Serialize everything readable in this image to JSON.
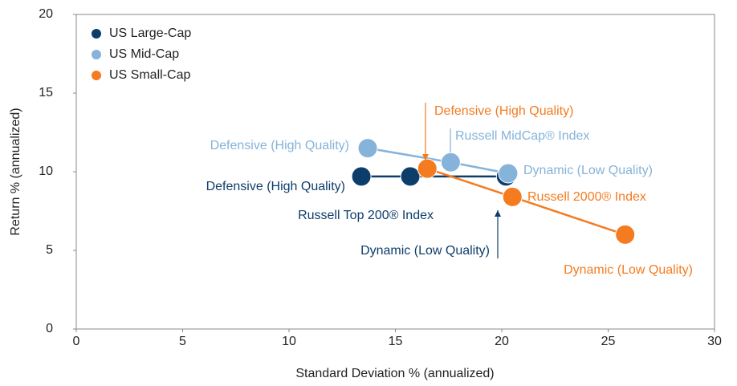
{
  "chart_data": {
    "type": "scatter",
    "xlabel": "Standard Deviation % (annualized)",
    "ylabel": "Return % (annualized)",
    "xlim": [
      0,
      30
    ],
    "xticks": [
      0,
      5,
      10,
      15,
      20,
      25,
      30
    ],
    "ylim": [
      0,
      20
    ],
    "yticks": [
      0,
      5,
      10,
      15,
      20
    ],
    "legend": "upper left",
    "series": [
      {
        "name": "US Large-Cap",
        "color": "#0d3d6b",
        "x": [
          13.4,
          15.7,
          20.2
        ],
        "values": [
          9.7,
          9.7,
          9.7
        ],
        "labels": [
          "Defensive (High Quality)",
          "Russell Top 200® Index",
          "Dynamic (Low Quality)"
        ]
      },
      {
        "name": "US Mid-Cap",
        "color": "#85b3da",
        "x": [
          13.7,
          17.6,
          20.3
        ],
        "values": [
          11.5,
          10.6,
          9.9
        ],
        "labels": [
          "Defensive (High Quality)",
          "Russell MidCap® Index",
          "Dynamic (Low Quality)"
        ]
      },
      {
        "name": "US Small-Cap",
        "color": "#f47b20",
        "x": [
          16.5,
          20.5,
          25.8
        ],
        "values": [
          10.2,
          8.4,
          6.0
        ],
        "labels": [
          "Defensive (High Quality)",
          "Russell 2000® Index",
          "Dynamic (Low Quality)"
        ]
      }
    ]
  }
}
